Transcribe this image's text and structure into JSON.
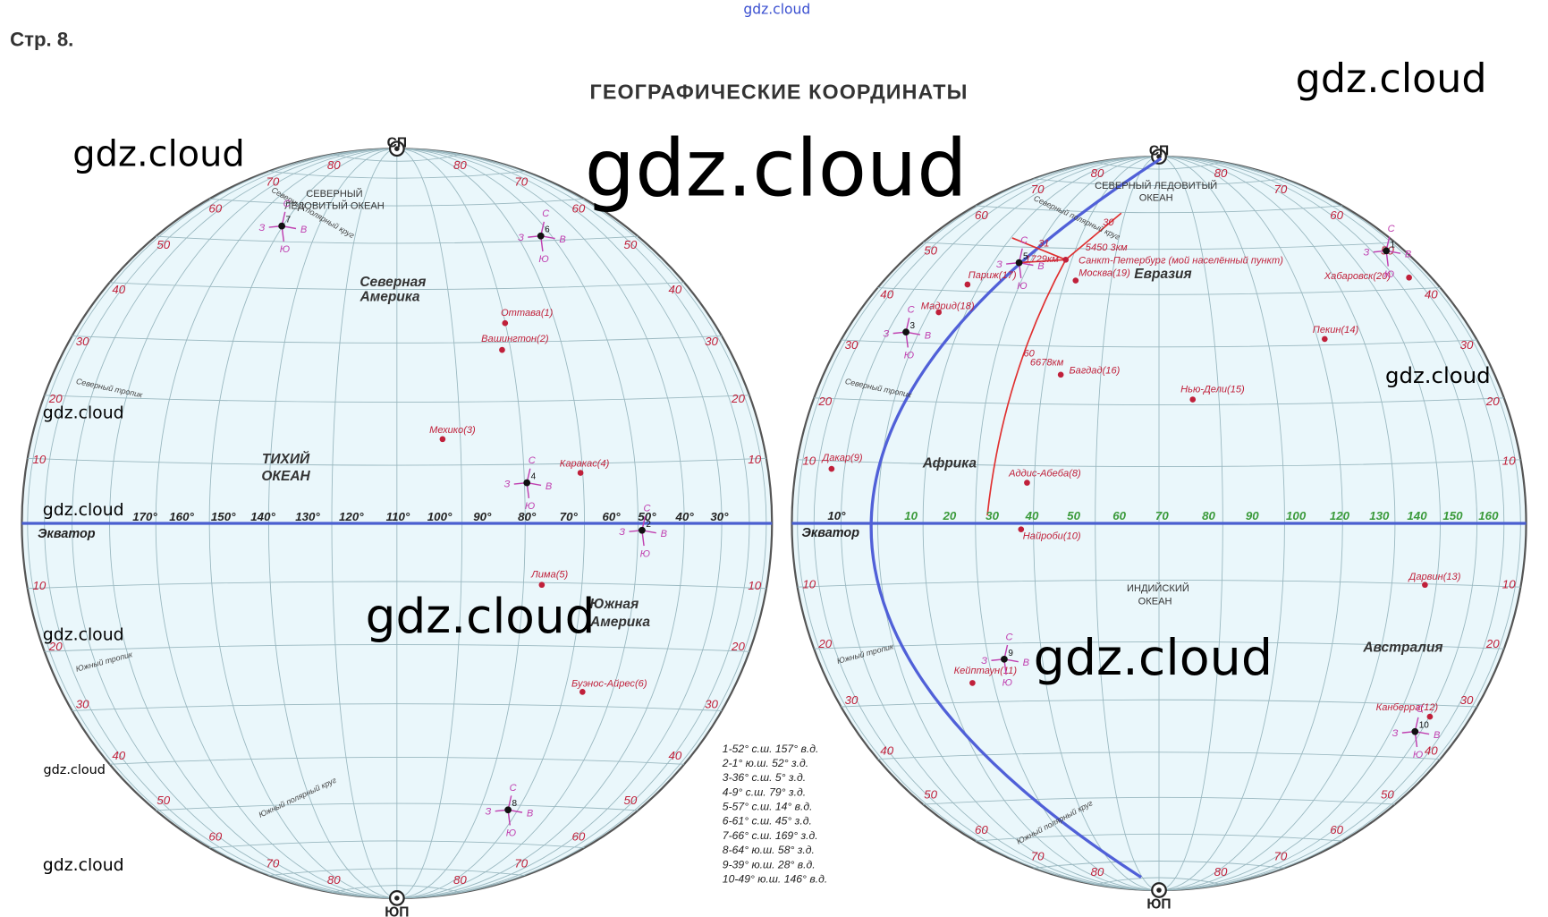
{
  "header": {
    "page": "Стр. 8.",
    "title": "ГЕОГРАФИЧЕСКИЕ КООРДИНАТЫ"
  },
  "watermarks": [
    "gdz.cloud",
    "gdz.cloud",
    "gdz.cloud",
    "gdz.cloud",
    "gdz.cloud",
    "gdz.cloud",
    "gdz.cloud",
    "gdz.cloud",
    "gdz.cloud",
    "gdz.cloud",
    "gdz.cloud",
    "gdz.cloud"
  ],
  "compass": [
    "С",
    "В",
    "Ю",
    "З"
  ],
  "west": {
    "north_pole": "СП",
    "south_pole": "ЮП",
    "equator": "Экватор",
    "latitudes": [
      "80",
      "70",
      "60",
      "50",
      "40",
      "30",
      "20",
      "10"
    ],
    "regions": [
      "СЕВЕРНЫЙ",
      "ЛЕДОВИТЫЙ ОКЕАН",
      "Северная",
      "Америка",
      "ТИХИЙ",
      "ОКЕАН",
      "Южная",
      "Америка"
    ],
    "lines": [
      "Северный тропик",
      "Южный тропик",
      "Северный полярный круг",
      "Южный полярный круг"
    ],
    "cities": [
      "Оттава(1)",
      "Вашингтон(2)",
      "Мехико(3)",
      "Каракас(4)",
      "Лима(5)",
      "Буэнос-Айрес(6)"
    ],
    "meridians": [
      "170°",
      "160°",
      "150°",
      "140°",
      "130°",
      "120°",
      "110°",
      "100°",
      "90°",
      "80°",
      "70°",
      "60°",
      "50°",
      "40°",
      "30°"
    ],
    "points": [
      "7",
      "6",
      "4",
      "2",
      "8"
    ]
  },
  "east": {
    "north_pole": "СП",
    "south_pole": "ЮП",
    "equator": "Экватор",
    "latitudes": [
      "80",
      "70",
      "60",
      "50",
      "40",
      "30",
      "20",
      "10"
    ],
    "regions": [
      "СЕВЕРНЫЙ ЛЕДОВИТЫЙ",
      "ОКЕАН",
      "Евразия",
      "Африка",
      "ИНДИЙСКИЙ",
      "ОКЕАН",
      "Австралия"
    ],
    "lines": [
      "Северный тропик",
      "Южный тропик",
      "Северный полярный круг",
      "Южный полярный круг"
    ],
    "cities": [
      "Париж(17)",
      "Мадрид(18)",
      "Москва(19)",
      "Санкт-Петербург (мой населённый пункт)",
      "Багдад(16)",
      "Нью-Дели(15)",
      "Пекин(14)",
      "Хабаровск(20)",
      "Дакар(9)",
      "Аддис-Абеба(8)",
      "Найроби(10)",
      "Кейптаун(11)",
      "Дарвин(13)",
      "Канберра(12)"
    ],
    "meridians": [
      "10°",
      "10",
      "20",
      "30",
      "40",
      "50",
      "60",
      "70",
      "80",
      "90",
      "100",
      "120",
      "130",
      "140",
      "150",
      "160"
    ],
    "distances": [
      "1729км",
      "5450 3км",
      "6678км"
    ],
    "angles": [
      "30",
      "31",
      "60"
    ],
    "points": [
      "5",
      "3",
      "9",
      "1",
      "10"
    ]
  },
  "answers": [
    "1-52° с.ш. 157° в.д.",
    "2-1° ю.ш. 52° з.д.",
    "3-36° с.ш. 5° з.д.",
    "4-9° с.ш. 79° з.д.",
    "5-57° с.ш. 14° в.д.",
    "6-61° с.ш. 45° з.д.",
    "7-66° с.ш. 169° з.д.",
    "8-64° ю.ш. 58° з.д.",
    "9-39° ю.ш. 28° в.д.",
    "10-49° ю.ш. 146° в.д."
  ]
}
